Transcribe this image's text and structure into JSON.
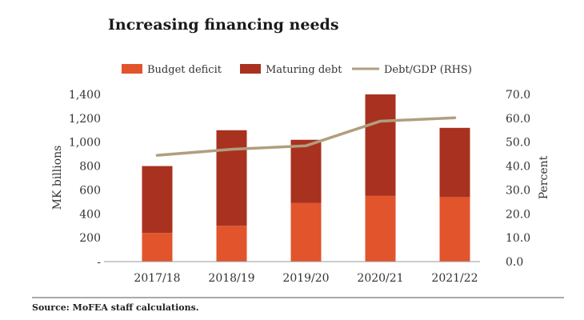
{
  "chart_data": {
    "type": "bar",
    "title": "Increasing financing needs",
    "categories": [
      "2017/18",
      "2018/19",
      "2019/20",
      "2020/21",
      "2021/22"
    ],
    "series": [
      {
        "name": "Budget deficit",
        "kind": "stacked-bar",
        "color": "#e2542b",
        "values": [
          240,
          300,
          490,
          550,
          540
        ]
      },
      {
        "name": "Maturing debt",
        "kind": "stacked-bar",
        "color": "#a8321f",
        "values": [
          560,
          800,
          530,
          850,
          580
        ]
      },
      {
        "name": "Debt/GDP (RHS)",
        "kind": "line",
        "axis": "right",
        "color": "#b09f7e",
        "values": [
          44.5,
          47.0,
          48.5,
          58.8,
          60.2
        ]
      }
    ],
    "y_left": {
      "label": "MK billions",
      "ylim": [
        0,
        1400
      ],
      "ticks": [
        "-",
        "200",
        "400",
        "600",
        "800",
        "1,000",
        "1,200",
        "1,400"
      ]
    },
    "y_right": {
      "label": "Percent",
      "ylim": [
        0,
        70
      ],
      "ticks": [
        "0.0",
        "10.0",
        "20.0",
        "30.0",
        "40.0",
        "50.0",
        "60.0",
        "70.0"
      ]
    },
    "grid": false,
    "legend_position": "top"
  },
  "source": "Source: MoFEA staff calculations."
}
